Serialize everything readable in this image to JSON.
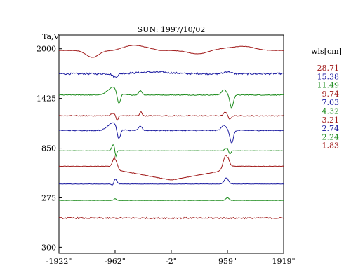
{
  "chart_data": {
    "type": "line",
    "title": "SUN: 1997/10/02",
    "ylabel": "Ta,V",
    "xlabel": "",
    "x_tick_labels": [
      "-1922\"",
      "-962\"",
      "-2\"",
      "959\"",
      "1919\""
    ],
    "x_ticks": [
      -1922,
      -962,
      -2,
      959,
      1919
    ],
    "xlim": [
      -1922,
      1919
    ],
    "y_ticks": [
      2000,
      1425,
      850,
      275,
      -300
    ],
    "y_tick_labels": [
      "2000",
      "1425",
      "850",
      "275",
      "-300"
    ],
    "ylim": [
      -370,
      2160
    ],
    "legend_title": "wls[cm]",
    "legend_position": "right",
    "grid": false,
    "series": [
      {
        "name": "28.71",
        "color": "#a01818",
        "baseline": 1980,
        "shape": "bumps_long",
        "noise": 2
      },
      {
        "name": "15.38",
        "color": "#1a1aa0",
        "baseline": 1710,
        "shape": "noisy_dip",
        "noise": 10
      },
      {
        "name": "11.49",
        "color": "#1a8a1a",
        "baseline": 1465,
        "shape": "dips_peak",
        "noise": 4
      },
      {
        "name": "9.74",
        "color": "#a01818",
        "baseline": 1225,
        "shape": "small_peaks",
        "noise": 5
      },
      {
        "name": "7.03",
        "color": "#1a1aa0",
        "baseline": 1055,
        "shape": "dips_peak",
        "noise": 5
      },
      {
        "name": "4.32",
        "color": "#1a8a1a",
        "baseline": 820,
        "shape": "limb_dips",
        "noise": 2
      },
      {
        "name": "3.21",
        "color": "#a01818",
        "baseline": 640,
        "shape": "v_curve",
        "noise": 3
      },
      {
        "name": "2.74",
        "color": "#1a1aa0",
        "baseline": 435,
        "shape": "limb_steps",
        "noise": 2
      },
      {
        "name": "2.24",
        "color": "#1a8a1a",
        "baseline": 245,
        "shape": "flat_limb",
        "noise": 2
      },
      {
        "name": "1.83",
        "color": "#a01818",
        "baseline": 40,
        "shape": "noise_only",
        "noise": 8
      }
    ]
  }
}
